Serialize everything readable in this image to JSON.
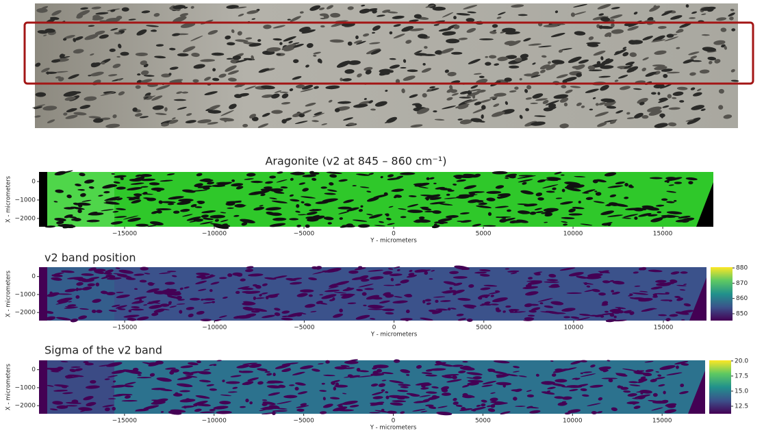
{
  "chart_data": [
    {
      "type": "heatmap",
      "title": "Aragonite (v2 at 845 – 860 cm⁻¹)",
      "xlabel": "Y - micrometers",
      "ylabel": "X - micrometers",
      "color": "#2fc82a",
      "xlim": [
        -19770,
        17820
      ],
      "ylim": [
        -2450,
        520
      ],
      "xticks": [
        {
          "value": -15000,
          "label": "−15000"
        },
        {
          "value": -10000,
          "label": "−10000"
        },
        {
          "value": -5000,
          "label": "−5000"
        },
        0,
        5000,
        10000,
        15000
      ],
      "yticks": [
        0,
        {
          "value": -1000,
          "label": "−1000"
        },
        {
          "value": -2000,
          "label": "−2000"
        }
      ]
    },
    {
      "type": "heatmap",
      "title": "v2 band position",
      "xlabel": "Y - micrometers",
      "ylabel": "X - micrometers",
      "colormap": "viridis",
      "color": "#3b528b",
      "xlim": [
        -19770,
        17400
      ],
      "ylim": [
        -2450,
        520
      ],
      "xticks": [
        {
          "value": -15000,
          "label": "−15000"
        },
        {
          "value": -10000,
          "label": "−10000"
        },
        {
          "value": -5000,
          "label": "−5000"
        },
        0,
        5000,
        10000,
        15000
      ],
      "yticks": [
        0,
        {
          "value": -1000,
          "label": "−1000"
        },
        {
          "value": -2000,
          "label": "−2000"
        }
      ],
      "clim": [
        845.5,
        880.5
      ],
      "cticks": [
        880,
        870,
        860,
        850
      ]
    },
    {
      "type": "heatmap",
      "title": "Sigma of the v2 band",
      "xlabel": "Y - micrometers",
      "ylabel": "X - micrometers",
      "colormap": "viridis",
      "color": "#2c728e",
      "xlim": [
        -19770,
        17400
      ],
      "ylim": [
        -2450,
        520
      ],
      "xticks": [
        {
          "value": -15000,
          "label": "−15000"
        },
        {
          "value": -10000,
          "label": "−10000"
        },
        {
          "value": -5000,
          "label": "−5000"
        },
        0,
        5000,
        10000,
        15000
      ],
      "yticks": [
        0,
        {
          "value": -1000,
          "label": "−1000"
        },
        {
          "value": -2000,
          "label": "−2000"
        }
      ],
      "clim": [
        11.25,
        20.1
      ],
      "cticks": [
        {
          "value": 20,
          "label": "20.0"
        },
        17.5,
        {
          "value": 15,
          "label": "15.0"
        },
        12.5
      ]
    }
  ]
}
